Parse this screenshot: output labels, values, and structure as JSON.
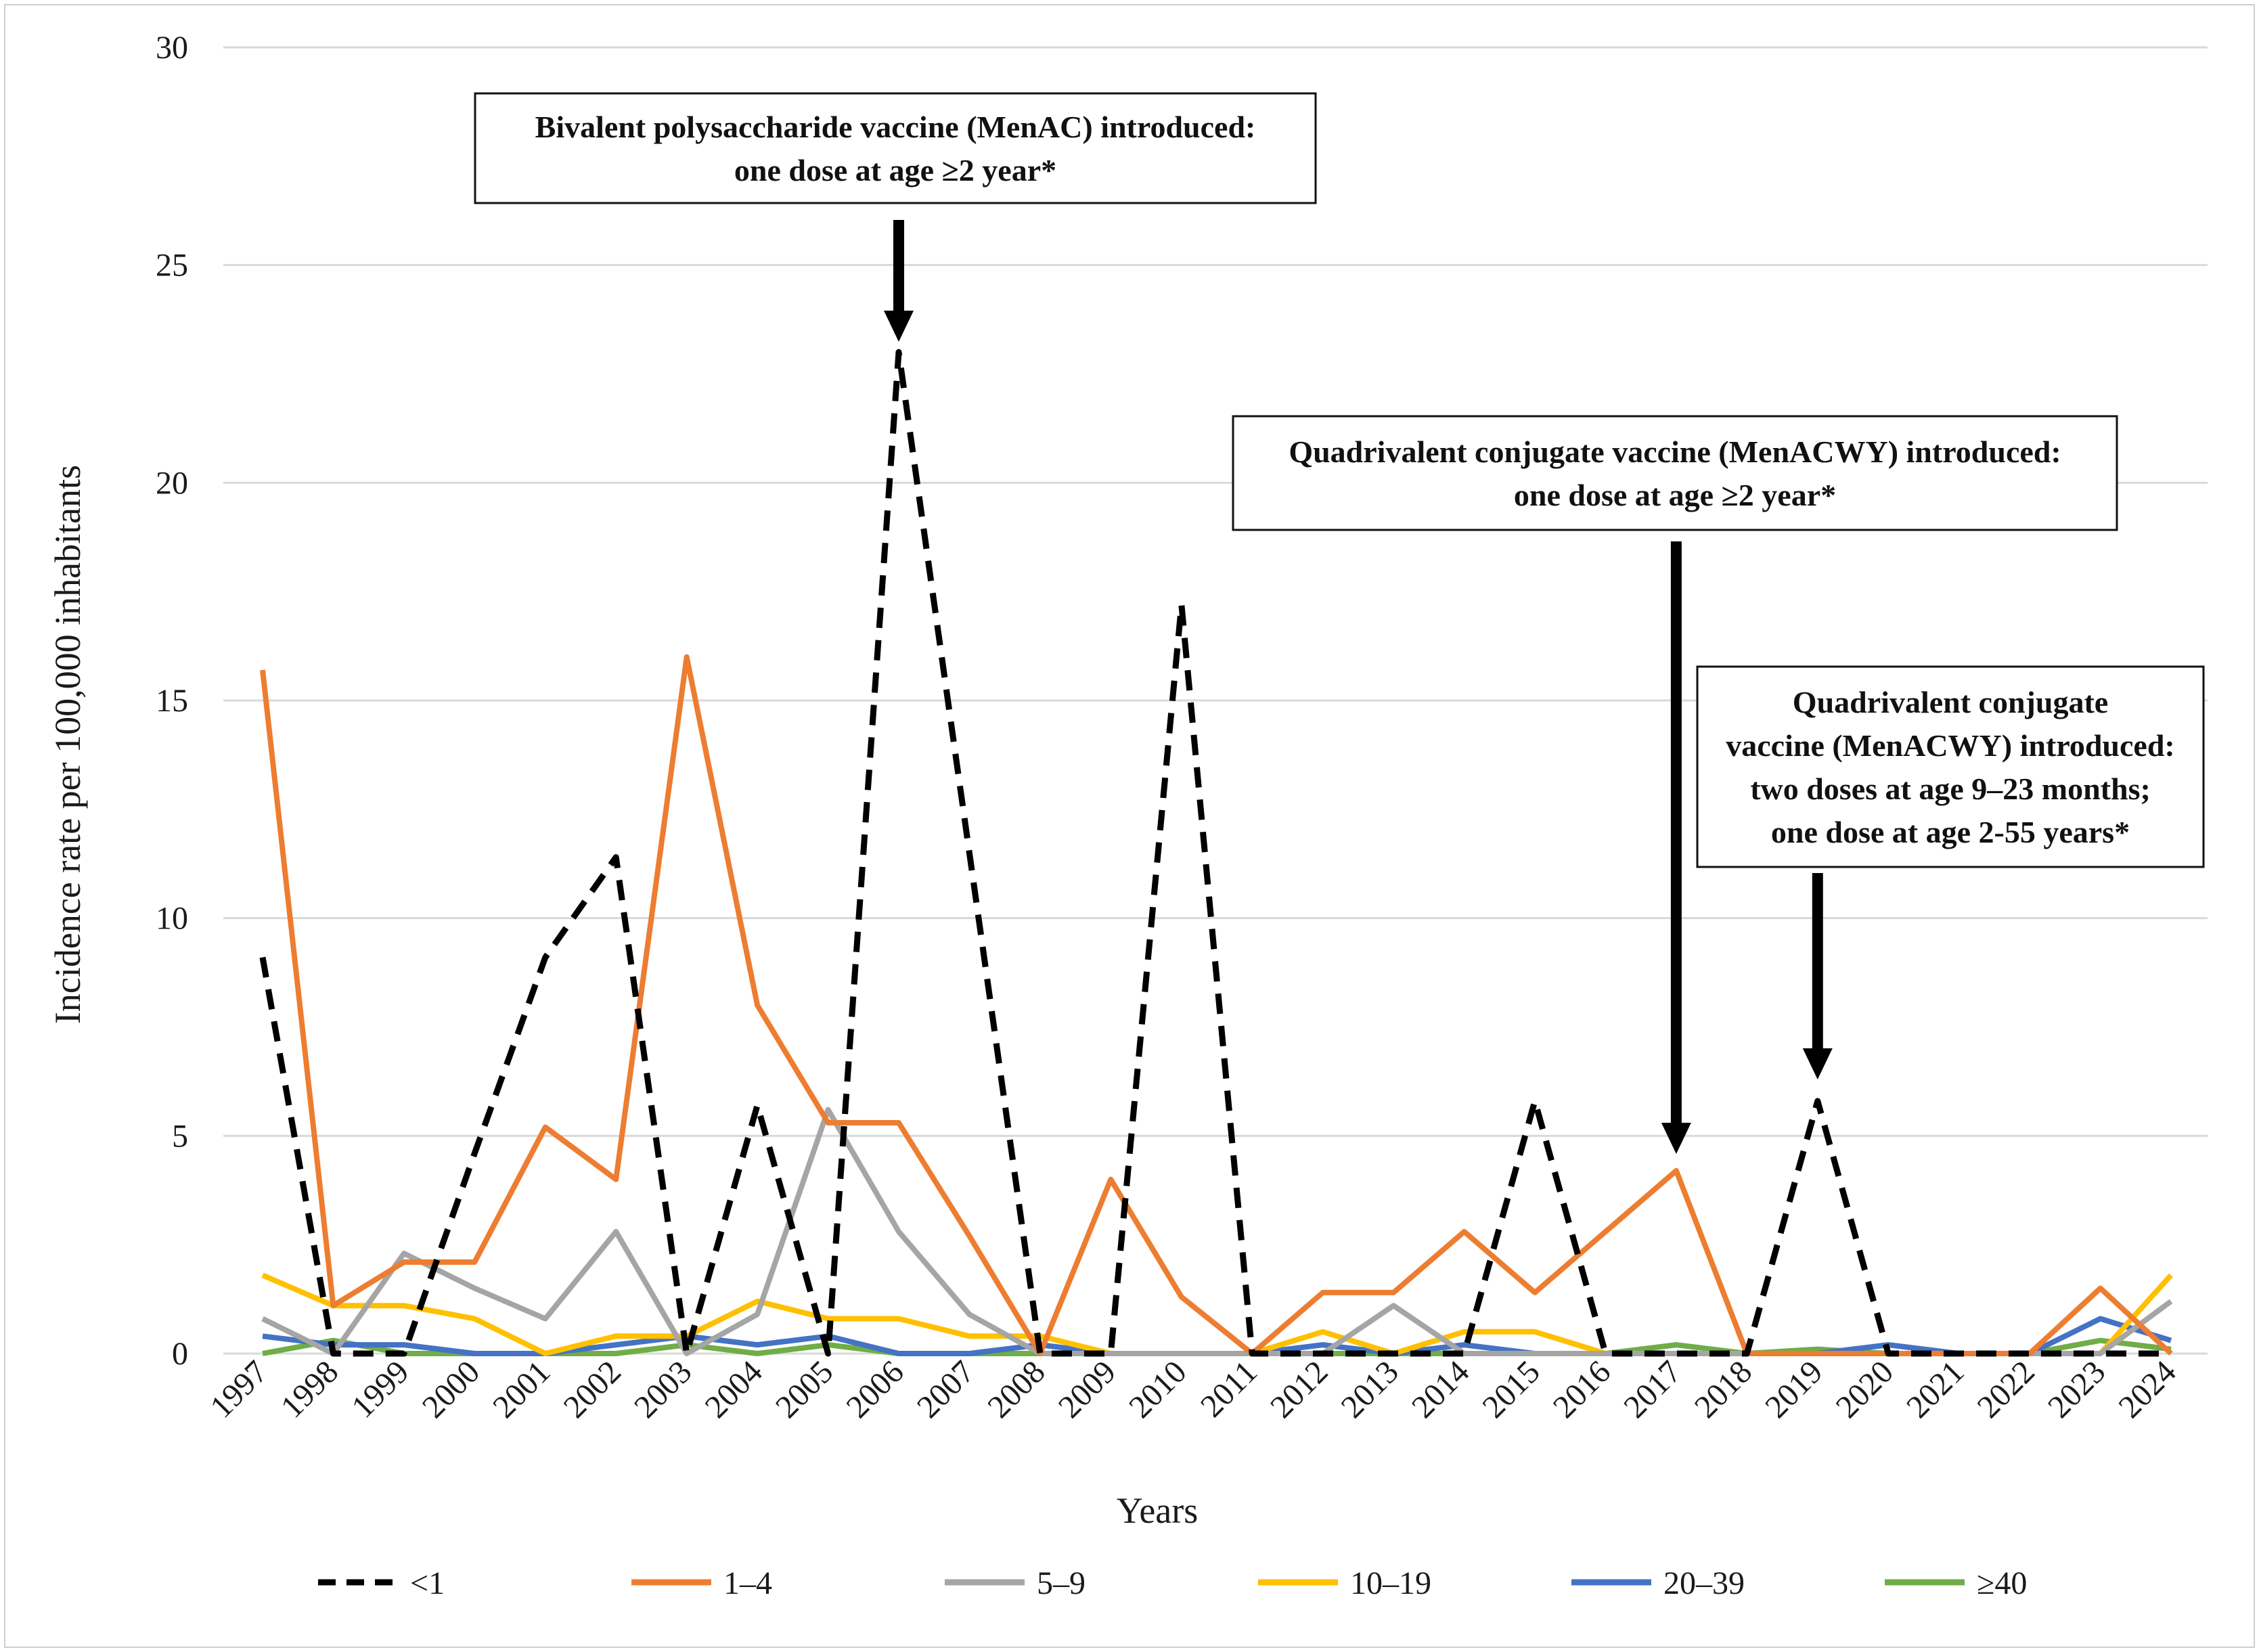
{
  "chart_data": {
    "type": "line",
    "title": "",
    "xlabel": "Years",
    "ylabel": "Incidence rate per 100,000 inhabitants",
    "ylim": [
      0,
      30
    ],
    "yticks": [
      0,
      5,
      10,
      15,
      20,
      25,
      30
    ],
    "grid": true,
    "legend_position": "bottom",
    "categories": [
      "1997",
      "1998",
      "1999",
      "2000",
      "2001",
      "2002",
      "2003",
      "2004",
      "2005",
      "2006",
      "2007",
      "2008",
      "2009",
      "2010",
      "2011",
      "2012",
      "2013",
      "2014",
      "2015",
      "2016",
      "2017",
      "2018",
      "2019",
      "2020",
      "2021",
      "2022",
      "2023",
      "2024"
    ],
    "series": [
      {
        "name": "<1",
        "color": "#000000",
        "dashed": true,
        "values": [
          9.1,
          0,
          0,
          4.6,
          9.1,
          11.4,
          0,
          5.7,
          0,
          23.0,
          11.5,
          0,
          0,
          17.2,
          0,
          0,
          0,
          0,
          5.8,
          0,
          0,
          0,
          5.8,
          0,
          0,
          0,
          0,
          0
        ]
      },
      {
        "name": "1–4",
        "color": "#ED7D31",
        "dashed": false,
        "values": [
          15.7,
          1.1,
          2.1,
          2.1,
          5.2,
          4.0,
          16.0,
          8.0,
          5.3,
          5.3,
          2.7,
          0,
          4.0,
          1.3,
          0,
          1.4,
          1.4,
          2.8,
          1.4,
          2.8,
          4.2,
          0,
          0,
          0,
          0,
          0,
          1.5,
          0
        ]
      },
      {
        "name": "5–9",
        "color": "#A5A5A5",
        "dashed": false,
        "values": [
          0.8,
          0,
          2.3,
          1.5,
          0.8,
          2.8,
          0,
          0.9,
          5.6,
          2.8,
          0.9,
          0,
          0,
          0,
          0,
          0,
          1.1,
          0,
          0,
          0,
          0,
          0,
          0,
          0,
          0,
          0,
          0,
          1.2
        ]
      },
      {
        "name": "10–19",
        "color": "#FFC000",
        "dashed": false,
        "values": [
          1.8,
          1.1,
          1.1,
          0.8,
          0,
          0.4,
          0.4,
          1.2,
          0.8,
          0.8,
          0.4,
          0.4,
          0,
          0,
          0,
          0.5,
          0,
          0.5,
          0.5,
          0,
          0,
          0,
          0,
          0,
          0,
          0,
          0,
          1.8
        ]
      },
      {
        "name": "20–39",
        "color": "#4472C4",
        "dashed": false,
        "values": [
          0.4,
          0.2,
          0.2,
          0,
          0,
          0.2,
          0.4,
          0.2,
          0.4,
          0,
          0,
          0.2,
          0,
          0,
          0,
          0.2,
          0,
          0.2,
          0,
          0,
          0,
          0,
          0,
          0.2,
          0,
          0,
          0.8,
          0.3
        ]
      },
      {
        "name": "≥40",
        "color": "#70AD47",
        "dashed": false,
        "values": [
          0,
          0.3,
          0,
          0,
          0,
          0,
          0.2,
          0,
          0.2,
          0,
          0,
          0,
          0,
          0,
          0,
          0,
          0,
          0,
          0,
          0,
          0.2,
          0,
          0.1,
          0,
          0,
          0,
          0.3,
          0.1
        ]
      }
    ],
    "annotations": [
      {
        "lines": [
          "Bivalent polysaccharide vaccine (MenAC) introduced:",
          "one dose at age ≥2 year*"
        ],
        "year": "2006"
      },
      {
        "lines": [
          "Quadrivalent conjugate vaccine (MenACWY) introduced:",
          "one dose at age ≥2 year*"
        ],
        "year": "2017"
      },
      {
        "lines": [
          "Quadrivalent conjugate",
          "vaccine (MenACWY) introduced:",
          "two doses at age 9–23 months;",
          "one dose at age 2-55 years*"
        ],
        "year": "2019"
      }
    ]
  }
}
